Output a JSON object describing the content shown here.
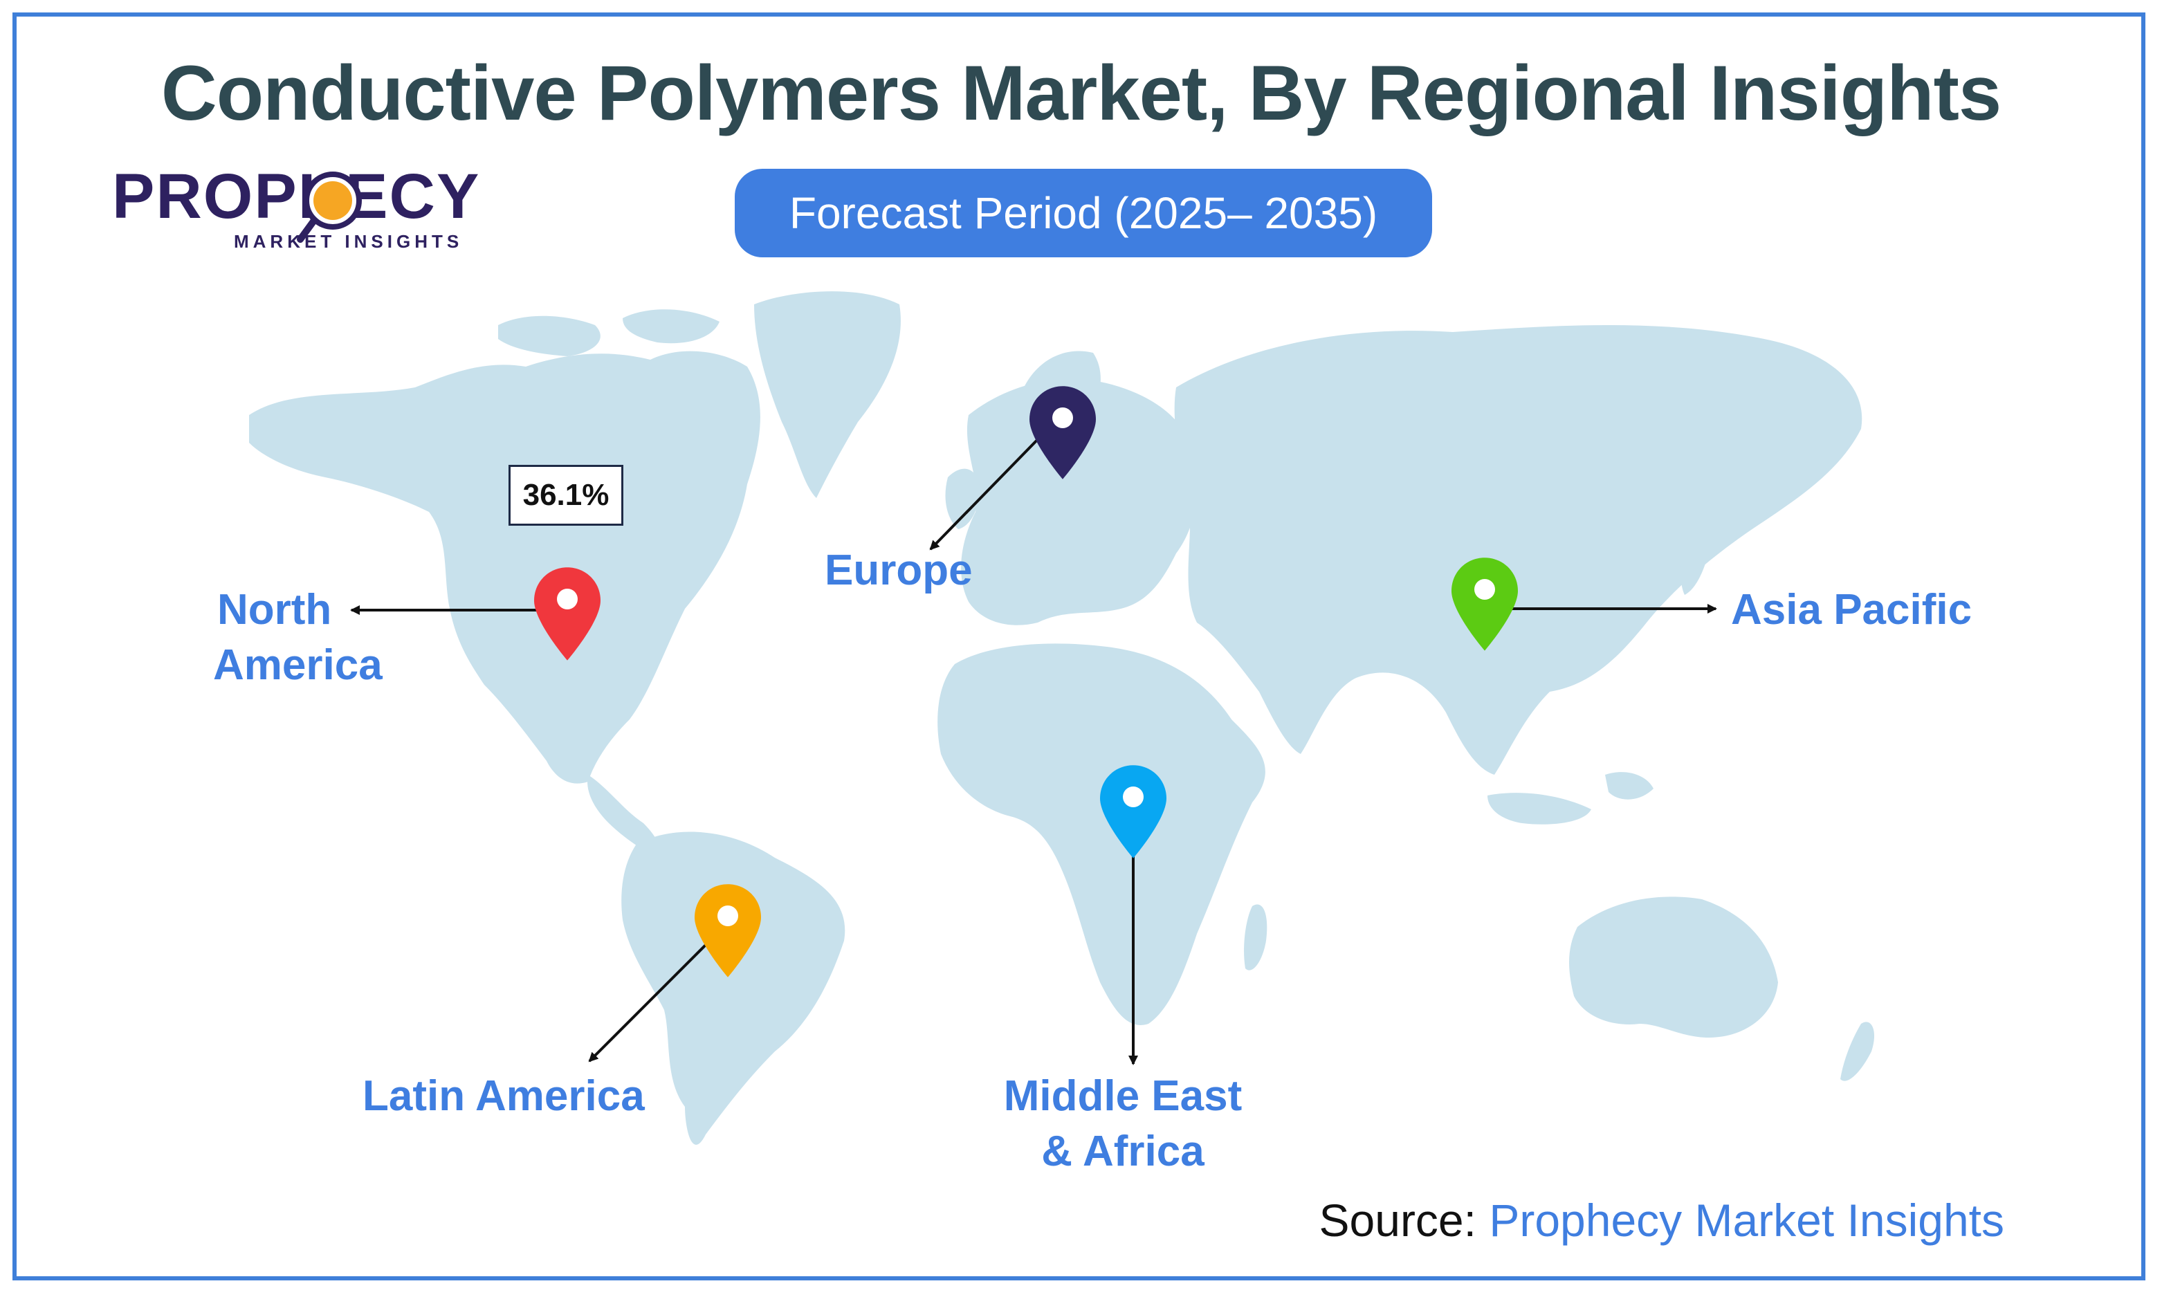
{
  "title": "Conductive Polymers Market, By Regional Insights",
  "logo": {
    "name": "PROPHECY",
    "tagline": "MARKET INSIGHTS"
  },
  "forecast_period": "Forecast Period (2025– 2035)",
  "map": {
    "highlight_value": "36.1%",
    "regions": {
      "north_america_line1": "North",
      "north_america_line2": "America",
      "europe": "Europe",
      "asia_pacific": "Asia Pacific",
      "latin_america": "Latin America",
      "mea_line1": "Middle East",
      "mea_line2": "& Africa"
    },
    "pin_icons": [
      "location-pin-icon"
    ],
    "colors": {
      "north_america_pin": "#f0373d",
      "europe_pin": "#2e2663",
      "asia_pacific_pin": "#5ccb13",
      "latin_america_pin": "#f8a800",
      "mea_pin": "#08a7f2",
      "land": "#c8e1ec",
      "label": "#3f7ee0"
    }
  },
  "source": {
    "label": "Source:",
    "value": "Prophecy Market Insights"
  }
}
